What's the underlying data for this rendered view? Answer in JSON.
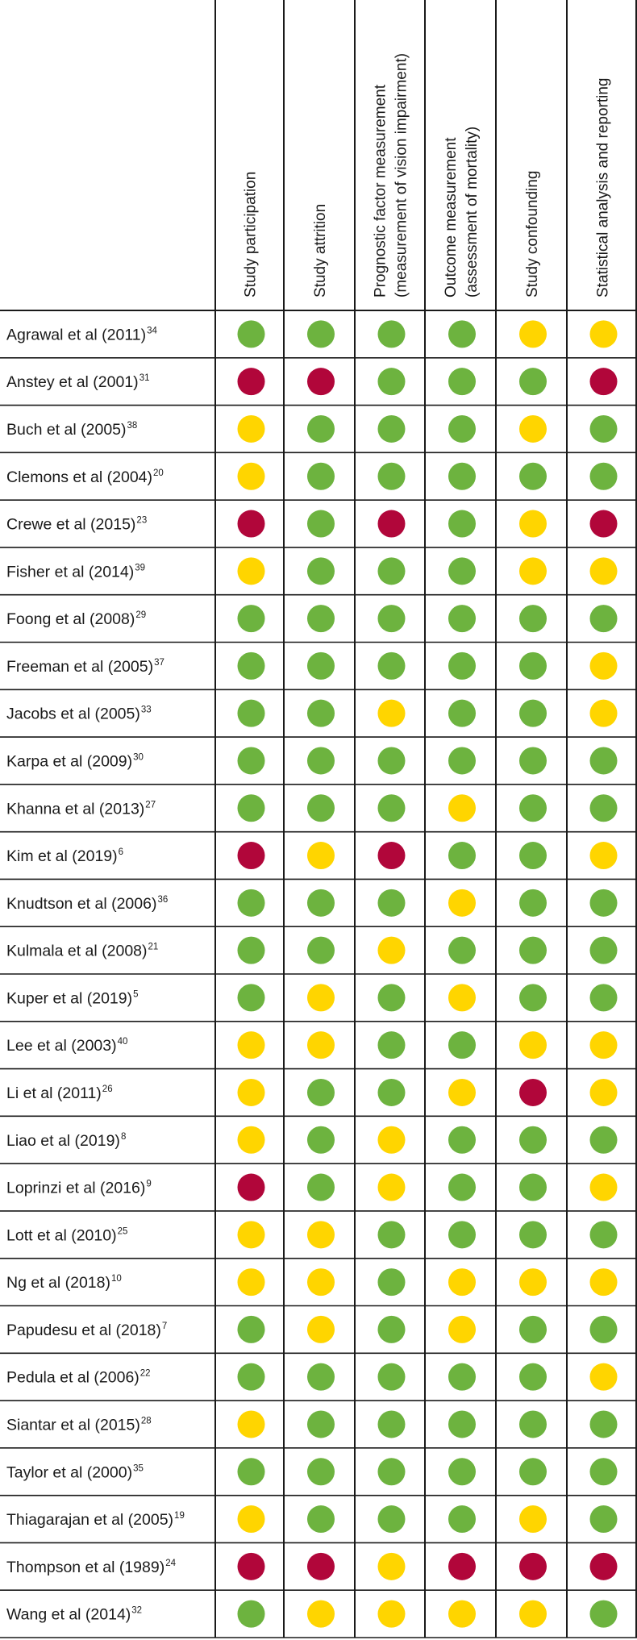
{
  "colors": {
    "low": "#6db33f",
    "moderate": "#ffd500",
    "high": "#b1063a"
  },
  "chart_data": {
    "type": "table",
    "columns": [
      [
        "Study participation"
      ],
      [
        "Study attrition"
      ],
      [
        "Prognostic factor measurement",
        "(measurement of vision impairment)"
      ],
      [
        "Outcome measurement",
        "(assessment of mortality)"
      ],
      [
        "Study confounding"
      ],
      [
        "Statistical analysis and reporting"
      ]
    ],
    "rows": [
      {
        "study": "Agrawal et al (2011)",
        "ref": "34",
        "ratings": [
          "low",
          "low",
          "low",
          "low",
          "moderate",
          "moderate"
        ]
      },
      {
        "study": "Anstey et al (2001)",
        "ref": "31",
        "ratings": [
          "high",
          "high",
          "low",
          "low",
          "low",
          "high"
        ]
      },
      {
        "study": "Buch et al (2005)",
        "ref": "38",
        "ratings": [
          "moderate",
          "low",
          "low",
          "low",
          "moderate",
          "low"
        ]
      },
      {
        "study": "Clemons et al (2004)",
        "ref": "20",
        "ratings": [
          "moderate",
          "low",
          "low",
          "low",
          "low",
          "low"
        ]
      },
      {
        "study": "Crewe et al (2015)",
        "ref": "23",
        "ratings": [
          "high",
          "low",
          "high",
          "low",
          "moderate",
          "high"
        ]
      },
      {
        "study": "Fisher et al (2014)",
        "ref": "39",
        "ratings": [
          "moderate",
          "low",
          "low",
          "low",
          "moderate",
          "moderate"
        ]
      },
      {
        "study": "Foong et al (2008)",
        "ref": "29",
        "ratings": [
          "low",
          "low",
          "low",
          "low",
          "low",
          "low"
        ]
      },
      {
        "study": "Freeman et al (2005)",
        "ref": "37",
        "ratings": [
          "low",
          "low",
          "low",
          "low",
          "low",
          "moderate"
        ]
      },
      {
        "study": "Jacobs et al (2005)",
        "ref": "33",
        "ratings": [
          "low",
          "low",
          "moderate",
          "low",
          "low",
          "moderate"
        ]
      },
      {
        "study": "Karpa et al (2009)",
        "ref": "30",
        "ratings": [
          "low",
          "low",
          "low",
          "low",
          "low",
          "low"
        ]
      },
      {
        "study": "Khanna et al (2013)",
        "ref": "27",
        "ratings": [
          "low",
          "low",
          "low",
          "moderate",
          "low",
          "low"
        ]
      },
      {
        "study": "Kim et al (2019)",
        "ref": "6",
        "ratings": [
          "high",
          "moderate",
          "high",
          "low",
          "low",
          "moderate"
        ]
      },
      {
        "study": "Knudtson et al (2006)",
        "ref": "36",
        "ratings": [
          "low",
          "low",
          "low",
          "moderate",
          "low",
          "low"
        ]
      },
      {
        "study": "Kulmala et al (2008)",
        "ref": "21",
        "ratings": [
          "low",
          "low",
          "moderate",
          "low",
          "low",
          "low"
        ]
      },
      {
        "study": "Kuper et al (2019)",
        "ref": "5",
        "ratings": [
          "low",
          "moderate",
          "low",
          "moderate",
          "low",
          "low"
        ]
      },
      {
        "study": "Lee et al (2003)",
        "ref": "40",
        "ratings": [
          "moderate",
          "moderate",
          "low",
          "low",
          "moderate",
          "moderate"
        ]
      },
      {
        "study": "Li et al (2011)",
        "ref": "26",
        "ratings": [
          "moderate",
          "low",
          "low",
          "moderate",
          "high",
          "moderate"
        ]
      },
      {
        "study": "Liao et al (2019)",
        "ref": "8",
        "ratings": [
          "moderate",
          "low",
          "moderate",
          "low",
          "low",
          "low"
        ]
      },
      {
        "study": "Loprinzi et al (2016)",
        "ref": "9",
        "ratings": [
          "high",
          "low",
          "moderate",
          "low",
          "low",
          "moderate"
        ]
      },
      {
        "study": "Lott et al (2010)",
        "ref": "25",
        "ratings": [
          "moderate",
          "moderate",
          "low",
          "low",
          "low",
          "low"
        ]
      },
      {
        "study": "Ng et al (2018)",
        "ref": "10",
        "ratings": [
          "moderate",
          "moderate",
          "low",
          "moderate",
          "moderate",
          "moderate"
        ]
      },
      {
        "study": "Papudesu et al (2018)",
        "ref": "7",
        "ratings": [
          "low",
          "moderate",
          "low",
          "moderate",
          "low",
          "low"
        ]
      },
      {
        "study": "Pedula et al (2006)",
        "ref": "22",
        "ratings": [
          "low",
          "low",
          "low",
          "low",
          "low",
          "moderate"
        ]
      },
      {
        "study": "Siantar et al (2015)",
        "ref": "28",
        "ratings": [
          "moderate",
          "low",
          "low",
          "low",
          "low",
          "low"
        ]
      },
      {
        "study": "Taylor et al (2000)",
        "ref": "35",
        "ratings": [
          "low",
          "low",
          "low",
          "low",
          "low",
          "low"
        ]
      },
      {
        "study": "Thiagarajan et al (2005)",
        "ref": "19",
        "ratings": [
          "moderate",
          "low",
          "low",
          "low",
          "moderate",
          "low"
        ]
      },
      {
        "study": "Thompson et al (1989)",
        "ref": "24",
        "ratings": [
          "high",
          "high",
          "moderate",
          "high",
          "high",
          "high"
        ]
      },
      {
        "study": "Wang et al (2014)",
        "ref": "32",
        "ratings": [
          "low",
          "moderate",
          "moderate",
          "moderate",
          "moderate",
          "low"
        ]
      }
    ]
  }
}
